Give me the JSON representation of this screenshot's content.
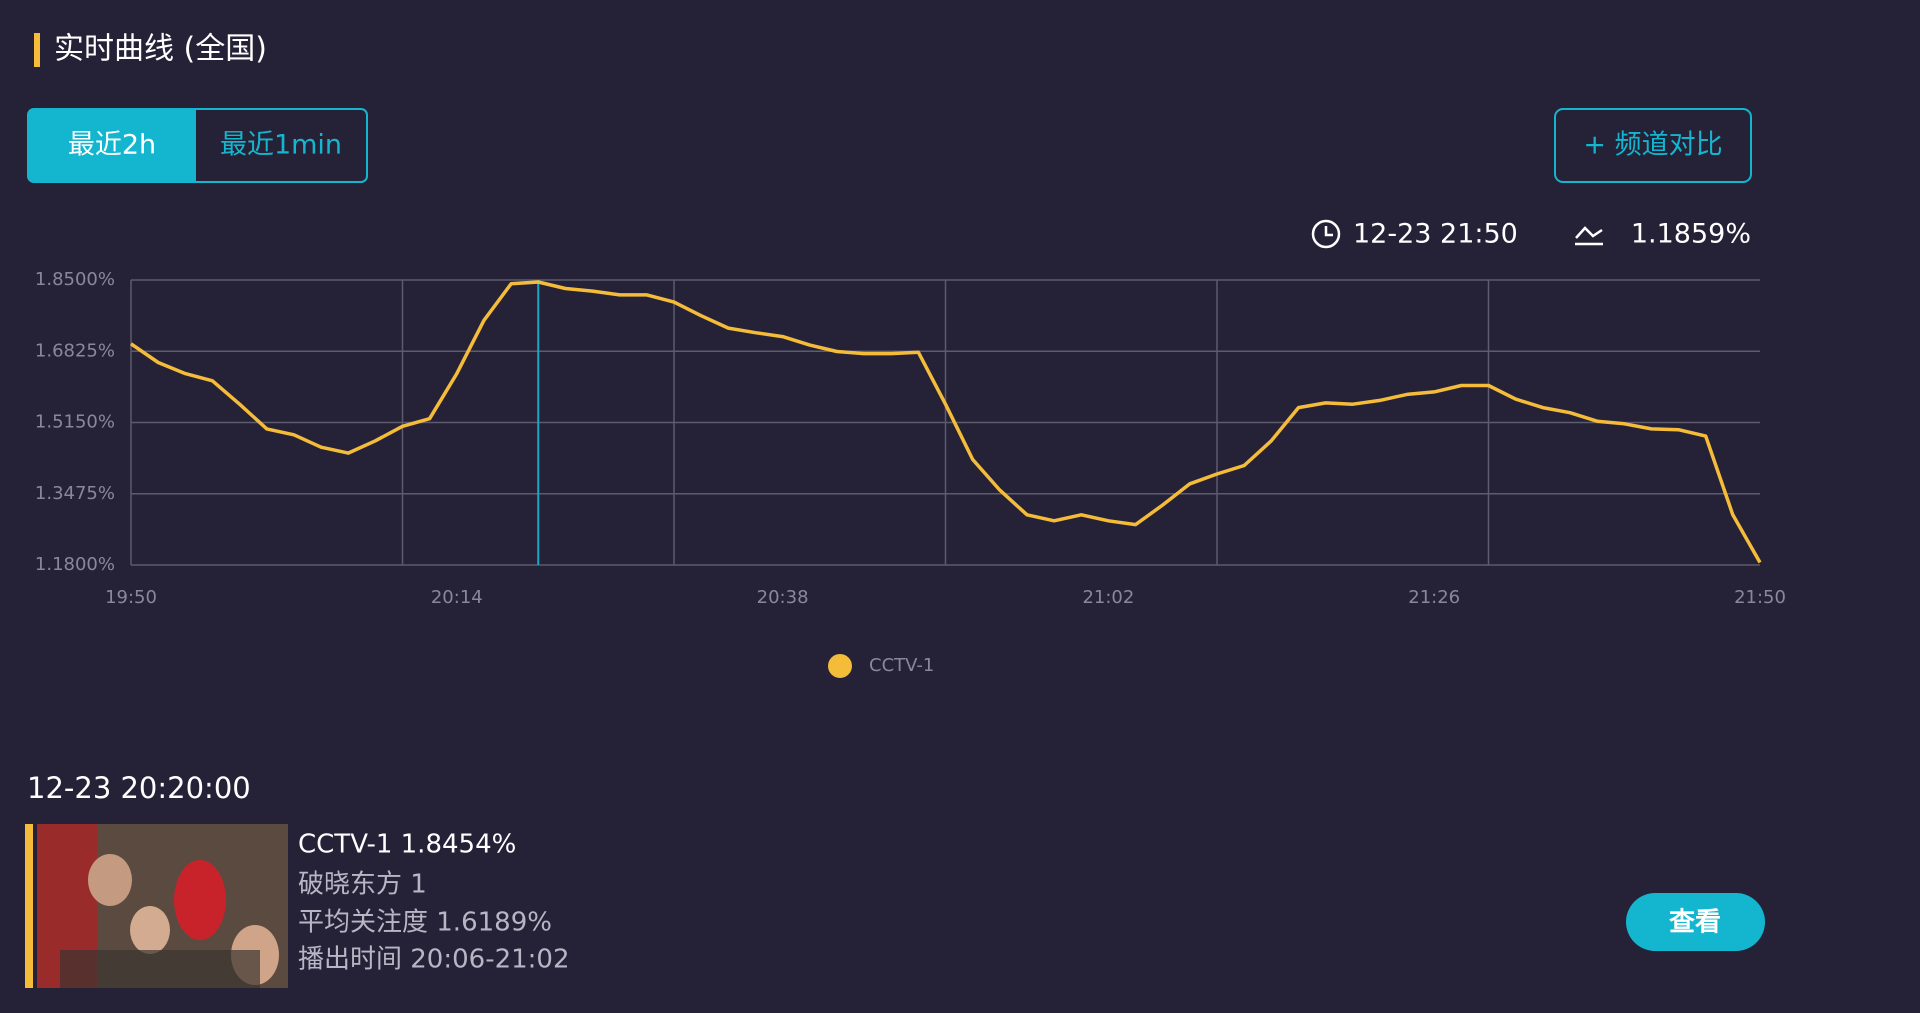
{
  "header": {
    "title": "实时曲线 (全国)"
  },
  "tabs": [
    "最近2h",
    "最近1min"
  ],
  "compare_button": "+ 频道对比",
  "status": {
    "time": "12-23 21:50",
    "value": "1.1859%"
  },
  "chart_data": {
    "type": "line",
    "x": [
      "19:50",
      "19:52",
      "19:54",
      "19:56",
      "19:58",
      "20:00",
      "20:02",
      "20:04",
      "20:06",
      "20:08",
      "20:10",
      "20:12",
      "20:14",
      "20:16",
      "20:18",
      "20:20",
      "20:22",
      "20:24",
      "20:26",
      "20:28",
      "20:30",
      "20:32",
      "20:34",
      "20:36",
      "20:38",
      "20:40",
      "20:42",
      "20:44",
      "20:46",
      "20:48",
      "20:50",
      "20:52",
      "20:54",
      "20:56",
      "20:58",
      "21:00",
      "21:02",
      "21:04",
      "21:06",
      "21:08",
      "21:10",
      "21:12",
      "21:14",
      "21:16",
      "21:18",
      "21:20",
      "21:22",
      "21:24",
      "21:26",
      "21:28",
      "21:30",
      "21:32",
      "21:34",
      "21:36",
      "21:38",
      "21:40",
      "21:42",
      "21:44",
      "21:46",
      "21:48",
      "21:50"
    ],
    "series": [
      {
        "name": "CCTV-1",
        "color": "#f5bc3a",
        "values": [
          1.7,
          1.656,
          1.63,
          1.613,
          1.558,
          1.5,
          1.486,
          1.457,
          1.443,
          1.472,
          1.506,
          1.524,
          1.63,
          1.755,
          1.841,
          1.8454,
          1.83,
          1.824,
          1.815,
          1.815,
          1.798,
          1.766,
          1.737,
          1.726,
          1.717,
          1.697,
          1.682,
          1.677,
          1.677,
          1.68,
          1.558,
          1.428,
          1.356,
          1.298,
          1.284,
          1.298,
          1.284,
          1.275,
          1.321,
          1.371,
          1.394,
          1.414,
          1.472,
          1.55,
          1.561,
          1.558,
          1.567,
          1.581,
          1.587,
          1.602,
          1.602,
          1.57,
          1.55,
          1.538,
          1.518,
          1.512,
          1.5,
          1.498,
          1.483,
          1.298,
          1.1859
        ]
      }
    ],
    "ylim": [
      1.18,
      1.85
    ],
    "yticks": [
      {
        "value": 1.18,
        "label": "1.1800%"
      },
      {
        "value": 1.3475,
        "label": "1.3475%"
      },
      {
        "value": 1.515,
        "label": "1.5150%"
      },
      {
        "value": 1.6825,
        "label": "1.6825%"
      },
      {
        "value": 1.85,
        "label": "1.8500%"
      }
    ],
    "xticks": [
      "19:50",
      "20:14",
      "20:38",
      "21:02",
      "21:26",
      "21:50"
    ],
    "xgrid": [
      "19:50",
      "20:10",
      "20:30",
      "20:50",
      "21:10",
      "21:30"
    ],
    "cursor": "20:20",
    "cursor_color": "#1aa7c4",
    "grid": true
  },
  "detail": {
    "time": "12-23 20:20:00",
    "headline": "CCTV-1 1.8454%",
    "program": "破晓东方 1",
    "average": "平均关注度 1.6189%",
    "airtime": "播出时间 20:06-21:02"
  },
  "view_button": "查看"
}
